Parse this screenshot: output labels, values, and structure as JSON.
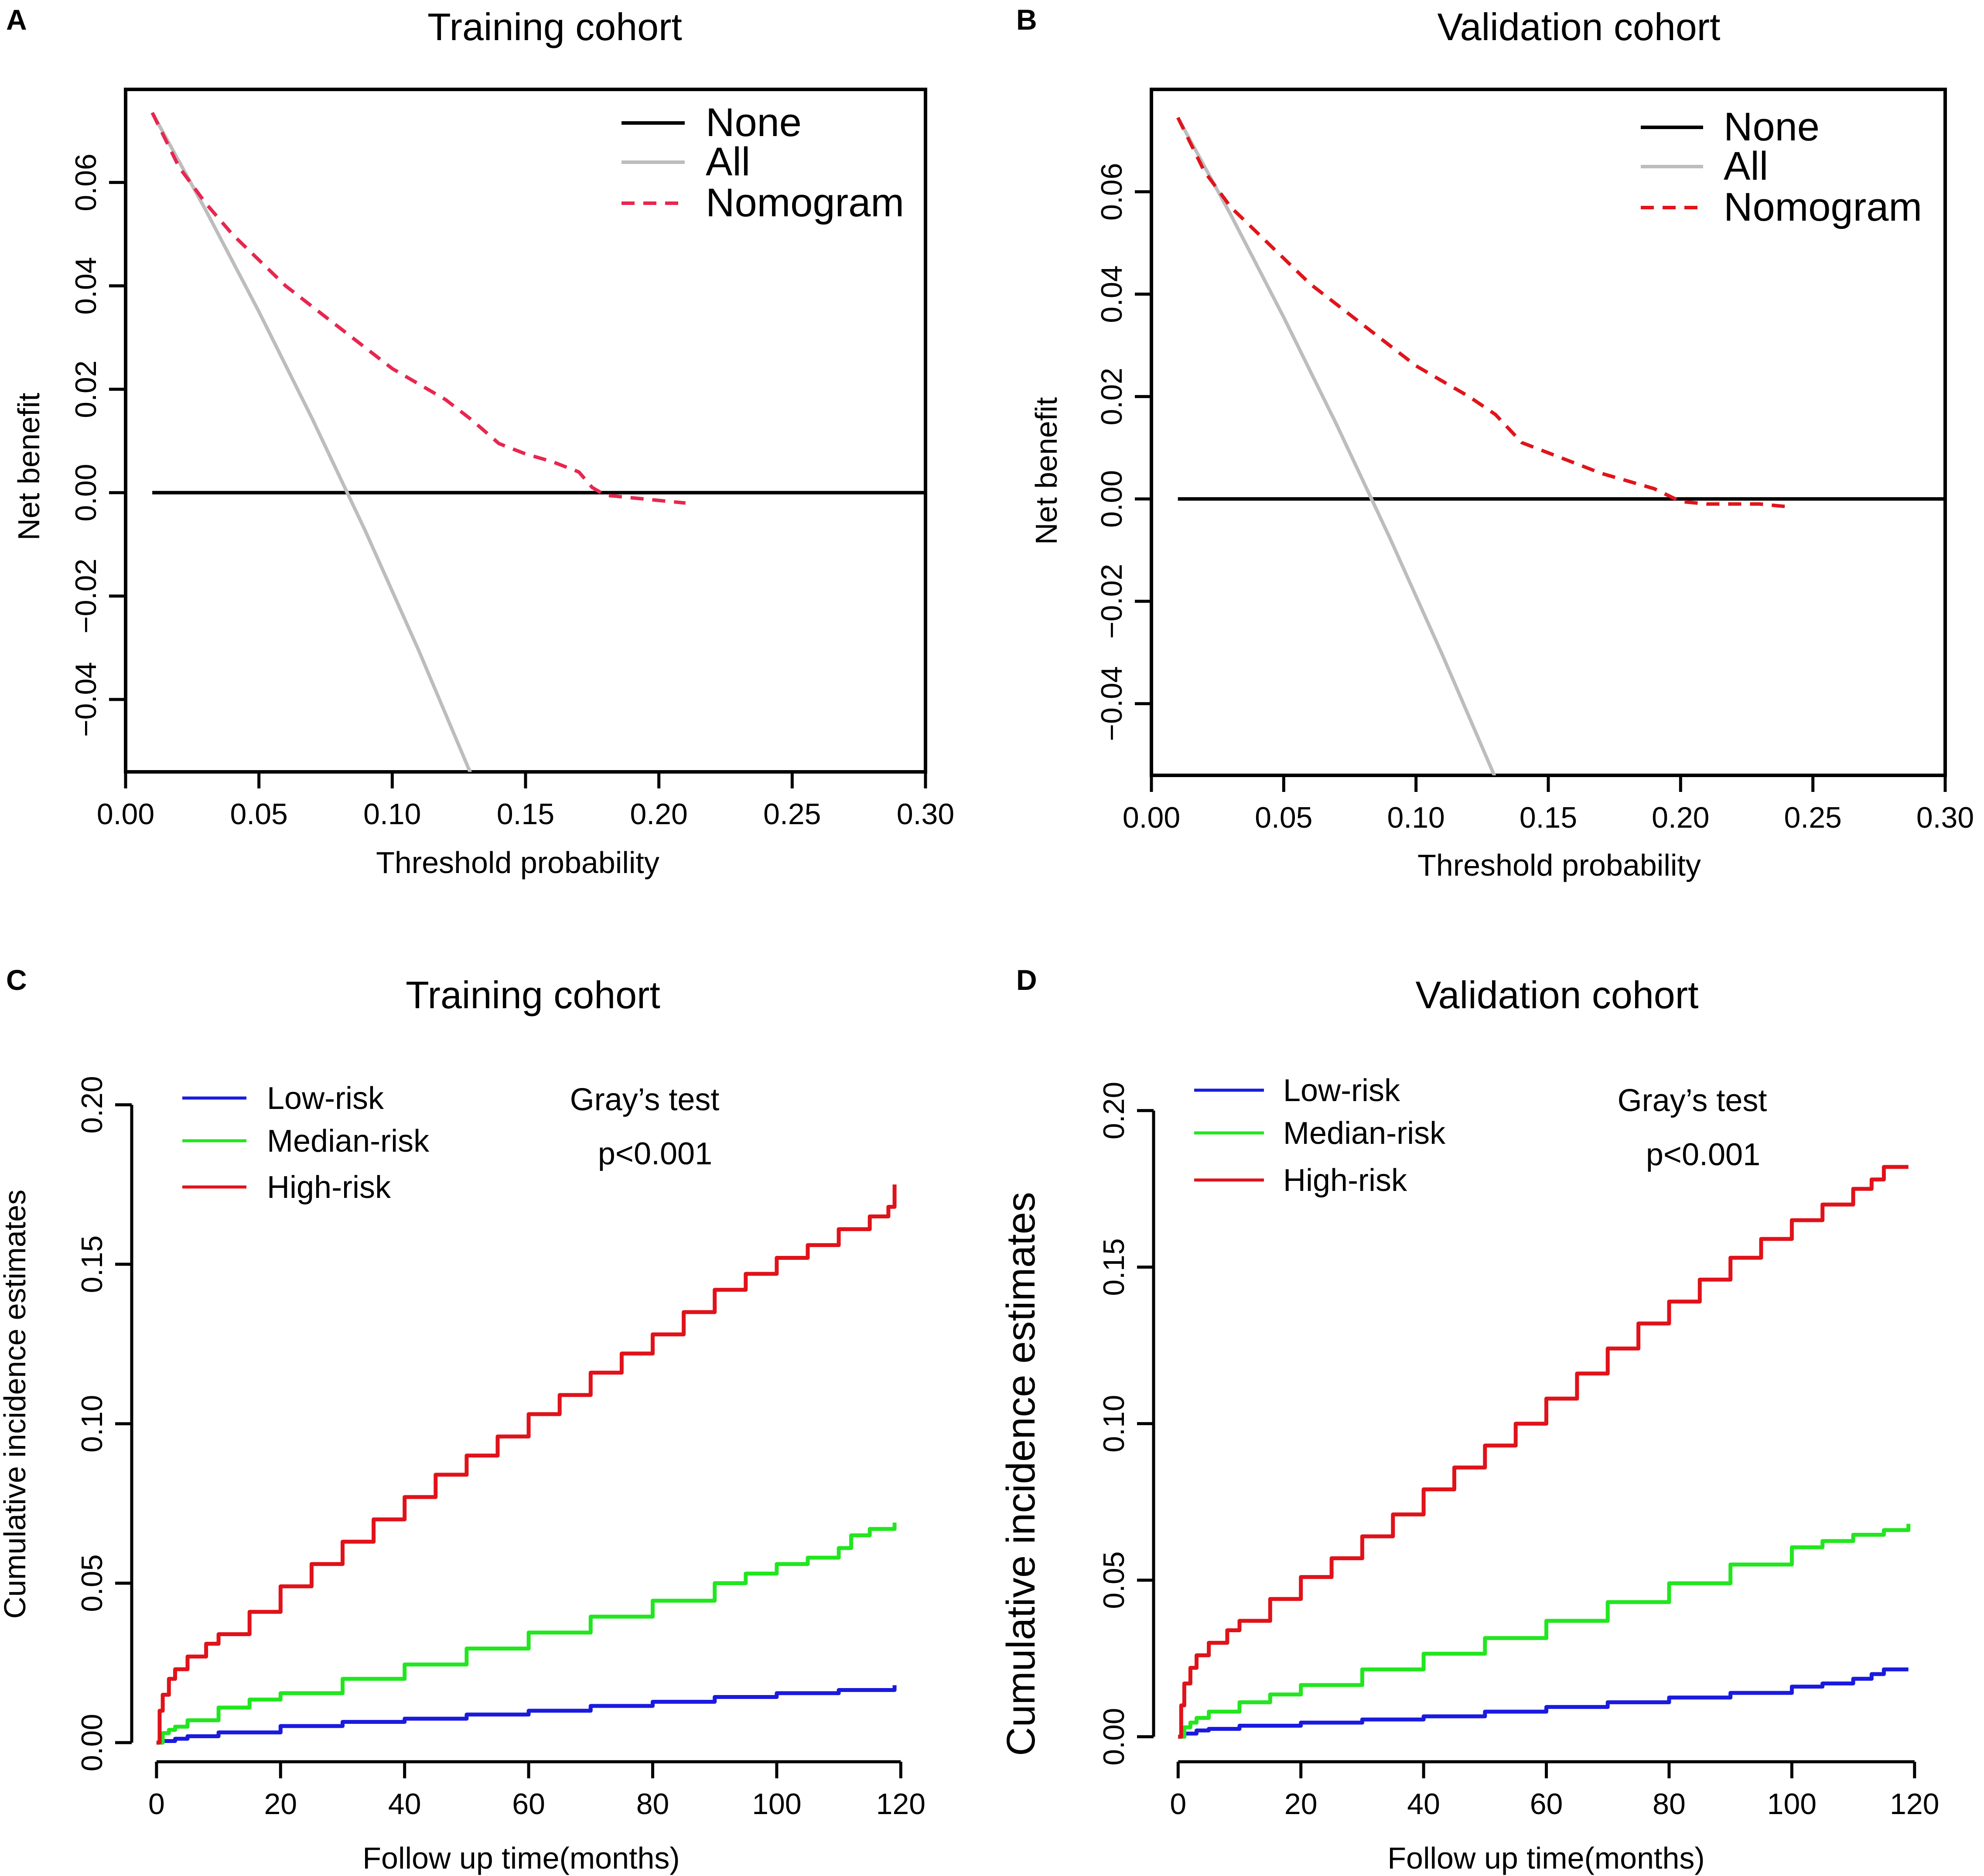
{
  "colors": {
    "none": "#000000",
    "all": "#bdbdbd",
    "nomogram_train": "#e8264f",
    "nomogram_valid": "#e0141b",
    "low": "#1a1adf",
    "median": "#22e61f",
    "high": "#e0121a",
    "axis": "#000000"
  },
  "chart_data": [
    {
      "panel": "A",
      "type": "line",
      "title": "Training cohort",
      "xlabel": "Threshold probability",
      "ylabel": "Net benefit",
      "xlim": [
        0.0,
        0.3
      ],
      "ylim": [
        -0.054,
        0.078
      ],
      "xticks": [
        0.0,
        0.05,
        0.1,
        0.15,
        0.2,
        0.25,
        0.3
      ],
      "xtick_labels": [
        "0.00",
        "0.05",
        "0.10",
        "0.15",
        "0.20",
        "0.25",
        "0.30"
      ],
      "yticks": [
        -0.04,
        -0.02,
        0.0,
        0.02,
        0.04,
        0.06
      ],
      "ytick_labels": [
        "−0.04",
        "−0.02",
        "0.00",
        "0.02",
        "0.04",
        "0.06"
      ],
      "legend_position": "top-right",
      "series": [
        {
          "name": "None",
          "style": "solid",
          "color_key": "none",
          "x": [
            0.01,
            0.3
          ],
          "y": [
            0.0,
            0.0
          ]
        },
        {
          "name": "All",
          "style": "solid",
          "color_key": "all",
          "x": [
            0.01,
            0.03,
            0.05,
            0.07,
            0.09,
            0.11,
            0.13
          ],
          "y": [
            0.0735,
            0.0547,
            0.035,
            0.0143,
            -0.0075,
            -0.0306,
            -0.055
          ]
        },
        {
          "name": "Nomogram",
          "style": "dashed",
          "color_key": "nomogram_train",
          "x": [
            0.01,
            0.02,
            0.03,
            0.04,
            0.05,
            0.06,
            0.07,
            0.08,
            0.09,
            0.1,
            0.11,
            0.12,
            0.13,
            0.14,
            0.15,
            0.16,
            0.17,
            0.175,
            0.18,
            0.19,
            0.2,
            0.21
          ],
          "y": [
            0.0735,
            0.063,
            0.056,
            0.05,
            0.045,
            0.04,
            0.036,
            0.032,
            0.028,
            0.024,
            0.021,
            0.018,
            0.014,
            0.0095,
            0.0075,
            0.006,
            0.004,
            0.001,
            -0.0005,
            -0.001,
            -0.0015,
            -0.002
          ]
        }
      ]
    },
    {
      "panel": "B",
      "type": "line",
      "title": "Validation cohort",
      "xlabel": "Threshold probability",
      "ylabel": "Net benefit",
      "xlim": [
        0.0,
        0.3
      ],
      "ylim": [
        -0.054,
        0.08
      ],
      "xticks": [
        0.0,
        0.05,
        0.1,
        0.15,
        0.2,
        0.25,
        0.3
      ],
      "xtick_labels": [
        "0.00",
        "0.05",
        "0.10",
        "0.15",
        "0.20",
        "0.25",
        "0.30"
      ],
      "yticks": [
        -0.04,
        -0.02,
        0.0,
        0.02,
        0.04,
        0.06
      ],
      "ytick_labels": [
        "−0.04",
        "−0.02",
        "0.00",
        "0.02",
        "0.04",
        "0.06"
      ],
      "legend_position": "top-right",
      "series": [
        {
          "name": "None",
          "style": "solid",
          "color_key": "none",
          "x": [
            0.01,
            0.3
          ],
          "y": [
            0.0,
            0.0
          ]
        },
        {
          "name": "All",
          "style": "solid",
          "color_key": "all",
          "x": [
            0.01,
            0.03,
            0.05,
            0.07,
            0.09,
            0.11,
            0.13
          ],
          "y": [
            0.0745,
            0.0555,
            0.0355,
            0.0145,
            -0.0075,
            -0.0305,
            -0.0545
          ]
        },
        {
          "name": "Nomogram",
          "style": "dashed",
          "color_key": "nomogram_valid",
          "x": [
            0.01,
            0.02,
            0.03,
            0.04,
            0.05,
            0.06,
            0.07,
            0.08,
            0.09,
            0.1,
            0.11,
            0.12,
            0.13,
            0.14,
            0.15,
            0.16,
            0.17,
            0.18,
            0.19,
            0.2,
            0.21,
            0.22,
            0.23,
            0.24
          ],
          "y": [
            0.0745,
            0.064,
            0.057,
            0.052,
            0.047,
            0.042,
            0.038,
            0.034,
            0.03,
            0.026,
            0.023,
            0.02,
            0.0165,
            0.011,
            0.009,
            0.007,
            0.005,
            0.0035,
            0.002,
            -0.0005,
            -0.001,
            -0.001,
            -0.001,
            -0.0015
          ]
        }
      ]
    },
    {
      "panel": "C",
      "type": "line",
      "step": true,
      "title": "Training cohort",
      "xlabel": "Follow up time(months)",
      "ylabel": "Cumulative incidence estimates",
      "xlim": [
        -4,
        123
      ],
      "ylim": [
        -0.006,
        0.208
      ],
      "xticks": [
        0,
        20,
        40,
        60,
        80,
        100,
        120
      ],
      "xtick_labels": [
        "0",
        "20",
        "40",
        "60",
        "80",
        "100",
        "120"
      ],
      "yticks": [
        0.0,
        0.05,
        0.1,
        0.15,
        0.2
      ],
      "ytick_labels": [
        "0.00",
        "0.05",
        "0.10",
        "0.15",
        "0.20"
      ],
      "legend_position": "top-left",
      "annotation": {
        "test": "Gray’s test",
        "p": "p<0.001"
      },
      "series": [
        {
          "name": "Low-risk",
          "color_key": "low",
          "x": [
            0,
            1,
            3,
            5,
            10,
            20,
            30,
            40,
            50,
            60,
            70,
            80,
            90,
            100,
            110,
            119
          ],
          "y": [
            0.0,
            0.0005,
            0.0012,
            0.002,
            0.0032,
            0.0052,
            0.0065,
            0.0075,
            0.0088,
            0.01,
            0.0115,
            0.0128,
            0.0143,
            0.0155,
            0.0165,
            0.018
          ]
        },
        {
          "name": "Median-risk",
          "color_key": "median",
          "x": [
            0,
            1,
            2,
            3,
            5,
            10,
            15,
            20,
            30,
            40,
            50,
            60,
            70,
            80,
            90,
            95,
            100,
            105,
            110,
            112,
            115,
            119
          ],
          "y": [
            0.0,
            0.003,
            0.004,
            0.005,
            0.007,
            0.011,
            0.0135,
            0.0155,
            0.02,
            0.0245,
            0.0295,
            0.0345,
            0.0395,
            0.0445,
            0.05,
            0.053,
            0.056,
            0.058,
            0.061,
            0.065,
            0.067,
            0.069
          ]
        },
        {
          "name": "High-risk",
          "color_key": "high",
          "x": [
            0,
            0.5,
            1,
            2,
            3,
            5,
            8,
            10,
            15,
            20,
            25,
            30,
            35,
            40,
            45,
            50,
            55,
            60,
            65,
            70,
            75,
            80,
            85,
            90,
            95,
            100,
            105,
            110,
            115,
            118,
            119
          ],
          "y": [
            0.0,
            0.01,
            0.015,
            0.02,
            0.023,
            0.027,
            0.031,
            0.034,
            0.041,
            0.049,
            0.056,
            0.063,
            0.07,
            0.077,
            0.084,
            0.09,
            0.096,
            0.103,
            0.109,
            0.116,
            0.122,
            0.128,
            0.135,
            0.142,
            0.147,
            0.152,
            0.156,
            0.161,
            0.165,
            0.168,
            0.175
          ]
        }
      ]
    },
    {
      "panel": "D",
      "type": "line",
      "step": true,
      "title": "Validation cohort",
      "xlabel": "Follow up time(months)",
      "ylabel": "Cumulative incidence estimates",
      "xlim": [
        -4,
        123
      ],
      "ylim": [
        -0.008,
        0.21
      ],
      "xticks": [
        0,
        20,
        40,
        60,
        80,
        100,
        120
      ],
      "xtick_labels": [
        "0",
        "20",
        "40",
        "60",
        "80",
        "100",
        "120"
      ],
      "yticks": [
        0.0,
        0.05,
        0.1,
        0.15,
        0.2
      ],
      "ytick_labels": [
        "0.00",
        "0.05",
        "0.10",
        "0.15",
        "0.20"
      ],
      "legend_position": "top-left",
      "annotation": {
        "test": "Gray’s test",
        "p": "p<0.001"
      },
      "series": [
        {
          "name": "Low-risk",
          "color_key": "low",
          "x": [
            0,
            1,
            3,
            5,
            10,
            20,
            30,
            40,
            50,
            60,
            70,
            80,
            90,
            100,
            105,
            110,
            113,
            115,
            119
          ],
          "y": [
            0.0,
            0.001,
            0.002,
            0.0025,
            0.0035,
            0.0045,
            0.0055,
            0.0065,
            0.008,
            0.0095,
            0.011,
            0.0125,
            0.014,
            0.016,
            0.017,
            0.0185,
            0.02,
            0.0215,
            0.0215
          ]
        },
        {
          "name": "Median-risk",
          "color_key": "median",
          "x": [
            0,
            1,
            2,
            3,
            5,
            10,
            15,
            20,
            30,
            40,
            50,
            60,
            70,
            80,
            90,
            100,
            105,
            110,
            115,
            118,
            119
          ],
          "y": [
            0.0,
            0.003,
            0.0045,
            0.006,
            0.008,
            0.011,
            0.0135,
            0.0165,
            0.0215,
            0.0265,
            0.0315,
            0.037,
            0.043,
            0.049,
            0.055,
            0.0605,
            0.0625,
            0.0645,
            0.066,
            0.066,
            0.068
          ]
        },
        {
          "name": "High-risk",
          "color_key": "high",
          "x": [
            0,
            0.5,
            1,
            2,
            3,
            5,
            8,
            10,
            15,
            20,
            25,
            30,
            35,
            40,
            45,
            50,
            55,
            60,
            65,
            70,
            75,
            80,
            85,
            90,
            95,
            100,
            105,
            110,
            113,
            115,
            119
          ],
          "y": [
            0.0,
            0.01,
            0.017,
            0.022,
            0.026,
            0.03,
            0.034,
            0.037,
            0.044,
            0.051,
            0.057,
            0.064,
            0.071,
            0.079,
            0.086,
            0.093,
            0.1,
            0.108,
            0.116,
            0.124,
            0.132,
            0.139,
            0.146,
            0.153,
            0.159,
            0.165,
            0.17,
            0.175,
            0.178,
            0.182,
            0.182
          ]
        }
      ]
    }
  ]
}
